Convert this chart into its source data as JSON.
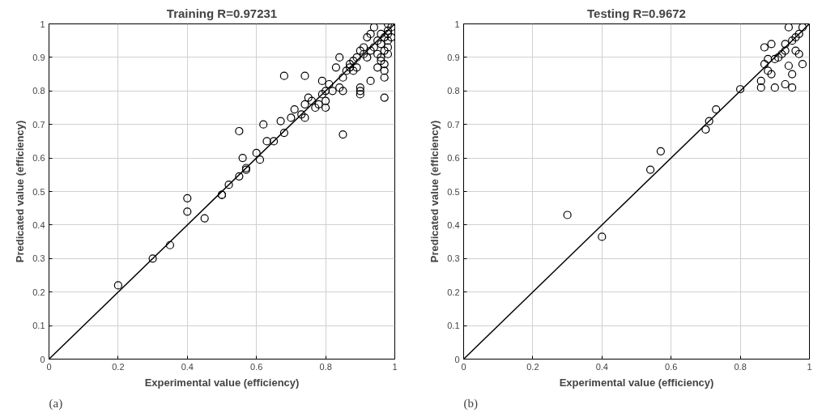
{
  "chart_data": [
    {
      "type": "scatter",
      "title": "Training R=0.97231",
      "xlabel": "Experimental value (efficiency)",
      "ylabel": "Predicated value (efficiency)",
      "annotations": [
        "(a)"
      ],
      "xlim": [
        0,
        1
      ],
      "ylim": [
        0,
        1
      ],
      "xticks": [
        0,
        0.2,
        0.4,
        0.6,
        0.8,
        1
      ],
      "yticks": [
        0,
        0.1,
        0.2,
        0.3,
        0.4,
        0.5,
        0.6,
        0.7,
        0.8,
        0.9,
        1
      ],
      "grid": true,
      "marker": "circle",
      "series": [
        {
          "color": "#000000",
          "x": [
            0.2,
            0.3,
            0.35,
            0.4,
            0.4,
            0.45,
            0.5,
            0.5,
            0.52,
            0.55,
            0.55,
            0.56,
            0.57,
            0.57,
            0.6,
            0.61,
            0.62,
            0.63,
            0.65,
            0.67,
            0.68,
            0.68,
            0.7,
            0.71,
            0.73,
            0.74,
            0.74,
            0.74,
            0.75,
            0.76,
            0.77,
            0.78,
            0.79,
            0.79,
            0.8,
            0.8,
            0.8,
            0.81,
            0.82,
            0.83,
            0.84,
            0.84,
            0.85,
            0.85,
            0.85,
            0.86,
            0.87,
            0.87,
            0.88,
            0.88,
            0.89,
            0.89,
            0.9,
            0.9,
            0.9,
            0.9,
            0.91,
            0.91,
            0.92,
            0.92,
            0.93,
            0.93,
            0.93,
            0.94,
            0.94,
            0.95,
            0.95,
            0.96,
            0.96,
            0.96,
            0.97,
            0.97,
            0.97,
            0.97,
            0.97,
            0.97,
            0.98,
            0.98,
            0.98,
            0.98,
            0.98,
            0.99,
            0.99,
            0.98,
            0.95,
            0.96
          ],
          "values": [
            0.22,
            0.3,
            0.34,
            0.48,
            0.44,
            0.42,
            0.49,
            0.49,
            0.52,
            0.545,
            0.68,
            0.6,
            0.565,
            0.57,
            0.615,
            0.595,
            0.7,
            0.65,
            0.65,
            0.71,
            0.675,
            0.845,
            0.72,
            0.745,
            0.73,
            0.845,
            0.72,
            0.76,
            0.78,
            0.77,
            0.75,
            0.76,
            0.83,
            0.79,
            0.8,
            0.75,
            0.77,
            0.82,
            0.8,
            0.87,
            0.81,
            0.9,
            0.84,
            0.67,
            0.8,
            0.86,
            0.88,
            0.87,
            0.89,
            0.86,
            0.9,
            0.87,
            0.92,
            0.81,
            0.8,
            0.79,
            0.93,
            0.91,
            0.96,
            0.9,
            0.92,
            0.83,
            0.97,
            0.99,
            0.93,
            0.95,
            0.91,
            0.9,
            0.94,
            0.97,
            0.88,
            0.86,
            0.84,
            0.78,
            0.92,
            0.96,
            0.98,
            0.95,
            0.93,
            1.0,
            0.97,
            0.99,
            0.96,
            0.91,
            0.87,
            0.89
          ]
        },
        {
          "type": "line",
          "color": "#000000",
          "x": [
            0,
            1
          ],
          "values": [
            0,
            1
          ],
          "marker": "none"
        }
      ]
    },
    {
      "type": "scatter",
      "title": "Testing R=0.9672",
      "xlabel": "Experimental value (efficiency)",
      "ylabel": "Predicated value (efficiency)",
      "annotations": [
        "(b)"
      ],
      "xlim": [
        0,
        1
      ],
      "ylim": [
        0,
        1
      ],
      "xticks": [
        0,
        0.2,
        0.4,
        0.6,
        0.8,
        1
      ],
      "yticks": [
        0,
        0.1,
        0.2,
        0.3,
        0.4,
        0.5,
        0.6,
        0.7,
        0.8,
        0.9,
        1
      ],
      "grid": true,
      "marker": "circle",
      "series": [
        {
          "color": "#000000",
          "x": [
            0.3,
            0.4,
            0.54,
            0.57,
            0.7,
            0.71,
            0.73,
            0.8,
            0.86,
            0.86,
            0.87,
            0.87,
            0.88,
            0.89,
            0.89,
            0.9,
            0.9,
            0.91,
            0.92,
            0.93,
            0.93,
            0.94,
            0.94,
            0.95,
            0.95,
            0.95,
            0.96,
            0.97,
            0.98,
            0.97,
            0.98,
            0.96,
            0.88,
            0.93
          ],
          "values": [
            0.43,
            0.365,
            0.565,
            0.62,
            0.685,
            0.71,
            0.745,
            0.805,
            0.83,
            0.81,
            0.93,
            0.88,
            0.895,
            0.94,
            0.85,
            0.81,
            0.895,
            0.9,
            0.91,
            0.82,
            0.94,
            0.99,
            0.875,
            0.95,
            0.85,
            0.81,
            0.92,
            0.91,
            0.88,
            0.97,
            0.99,
            0.96,
            0.86,
            0.92
          ]
        },
        {
          "type": "line",
          "color": "#000000",
          "x": [
            0,
            1
          ],
          "values": [
            0,
            1
          ],
          "marker": "none"
        }
      ]
    }
  ]
}
